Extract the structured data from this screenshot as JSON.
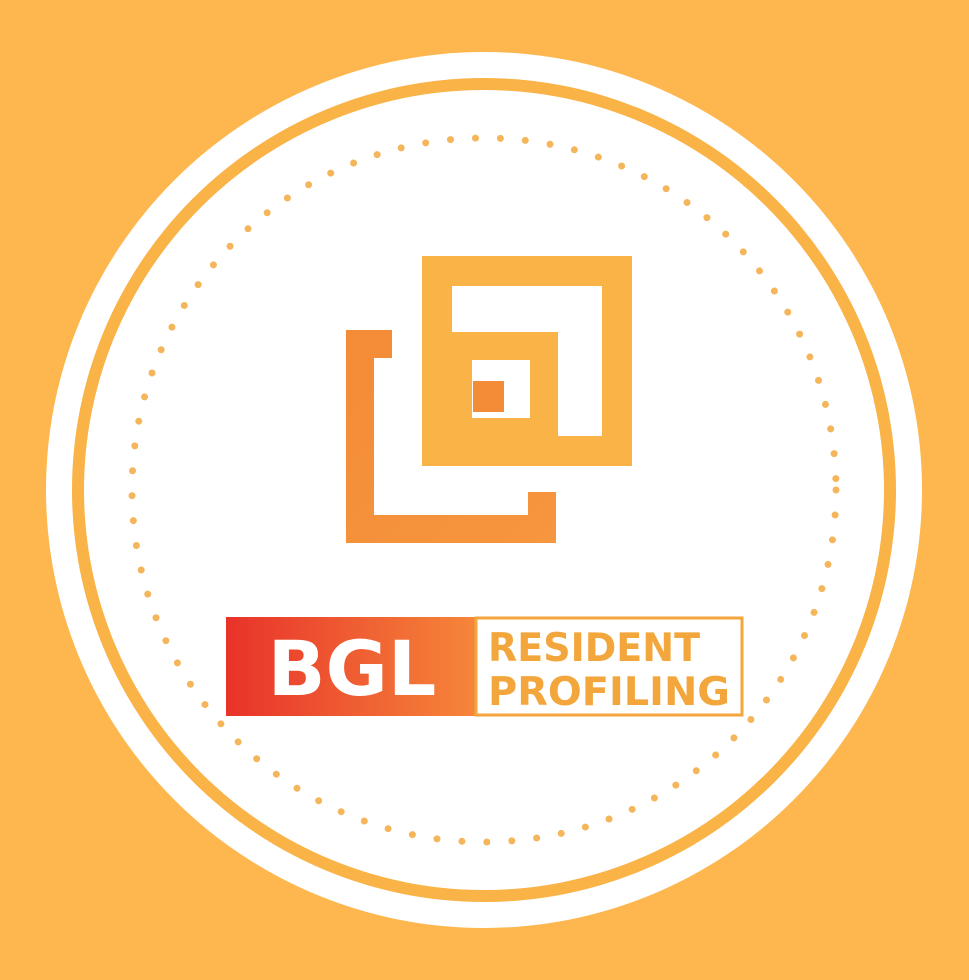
{
  "logo": {
    "badge_label": "BGL",
    "title_line_1": "RESIDENT",
    "title_line_2": "PROFILING"
  },
  "colors": {
    "background": "#FDB74E",
    "ring": "#FFFFFF",
    "inner_disc": "#FFFFFF",
    "accent_gold": "#F9B347",
    "accent_orange": "#F48B37",
    "badge_red": "#E8322A",
    "badge_orange": "#F6873A",
    "title_text": "#F2A63C"
  },
  "icons": [
    "nested-squares-icon"
  ]
}
